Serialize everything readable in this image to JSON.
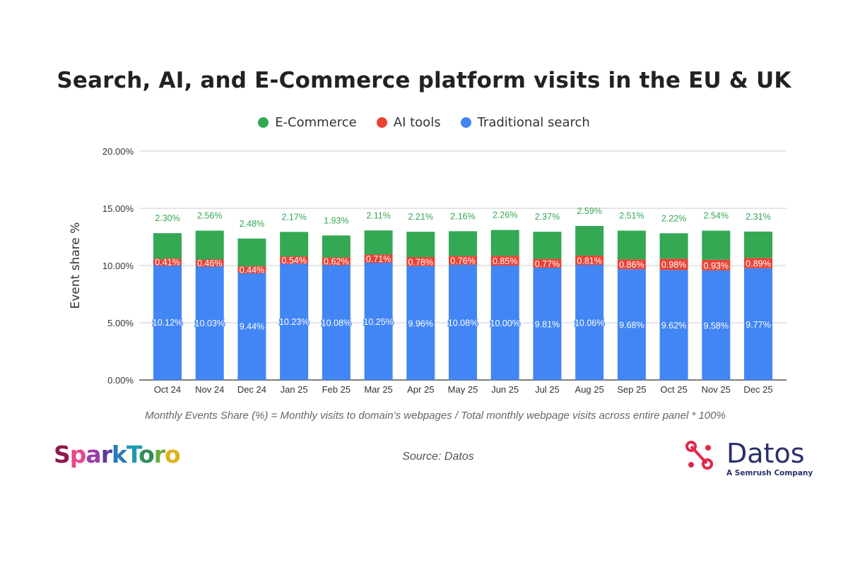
{
  "chart_data": {
    "type": "bar",
    "stacked": true,
    "title": "Search, AI, and E-Commerce platform visits in the EU & UK",
    "ylabel": "Event share %",
    "xlabel": "",
    "ylim": [
      0,
      20
    ],
    "yticks": [
      "0.00%",
      "5.00%",
      "10.00%",
      "15.00%",
      "20.00%"
    ],
    "grid": true,
    "legend_position": "top",
    "categories": [
      "Oct 24",
      "Nov 24",
      "Dec 24",
      "Jan 25",
      "Feb 25",
      "Mar 25",
      "Apr 25",
      "May 25",
      "Jun 25",
      "Jul 25",
      "Aug 25",
      "Sep 25",
      "Oct 25",
      "Nov 25",
      "Dec 25"
    ],
    "series": [
      {
        "name": "Traditional search",
        "color": "#4285f4",
        "values": [
          10.12,
          10.03,
          9.44,
          10.23,
          10.08,
          10.25,
          9.96,
          10.08,
          10.0,
          9.81,
          10.06,
          9.68,
          9.62,
          9.58,
          9.77
        ]
      },
      {
        "name": "AI tools",
        "color": "#ea4335",
        "values": [
          0.41,
          0.46,
          0.44,
          0.54,
          0.62,
          0.71,
          0.78,
          0.76,
          0.85,
          0.77,
          0.81,
          0.86,
          0.98,
          0.93,
          0.89
        ]
      },
      {
        "name": "E-Commerce",
        "color": "#34a853",
        "values": [
          2.3,
          2.56,
          2.48,
          2.17,
          1.93,
          2.11,
          2.21,
          2.16,
          2.26,
          2.37,
          2.59,
          2.51,
          2.22,
          2.54,
          2.31
        ]
      }
    ],
    "legend_order": [
      "E-Commerce",
      "AI tools",
      "Traditional search"
    ]
  },
  "footnote": "Monthly Events Share (%) = Monthly visits to domain’s webpages / Total monthly webpage visits across entire panel * 100%",
  "source": "Source: Datos",
  "logos": {
    "sparktoro": "SparkToro",
    "datos": "Datos",
    "datos_tagline": "A Semrush Company"
  }
}
